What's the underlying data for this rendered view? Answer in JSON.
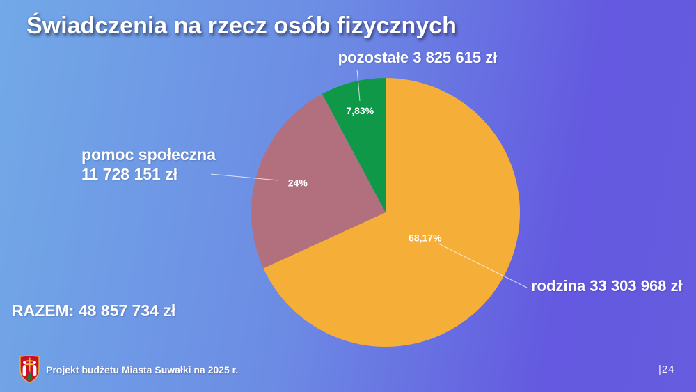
{
  "slide": {
    "title": "Świadczenia na rzecz osób fizycznych",
    "total_label": "RAZEM: 48 857 734 zł",
    "footer": "Projekt budżetu Miasta Suwałki na 2025 r.",
    "page_number": "|24",
    "background_gradient": [
      "#72A9E7",
      "#6459E0"
    ]
  },
  "chart_data": {
    "type": "pie",
    "title": "Świadczenia na rzecz osób fizycznych",
    "categories": [
      "rodzina",
      "pomoc społeczna",
      "pozostałe"
    ],
    "values": [
      33303968,
      11728151,
      3825615
    ],
    "unit": "zł",
    "total": 48857734,
    "percent_labels": [
      "68,17%",
      "24%",
      "7,83%"
    ],
    "colors": [
      "#F5AF38",
      "#B2707F",
      "#0F9847"
    ],
    "start_angle_deg": 0,
    "direction": "clockwise",
    "legend_position": "none",
    "callouts": {
      "pozostale": "pozostałe 3 825 615 zł",
      "pomoc_line1": "pomoc społeczna",
      "pomoc_line2": "11 728 151 zł",
      "rodzina": "rodzina 33 303 968 zł"
    }
  }
}
